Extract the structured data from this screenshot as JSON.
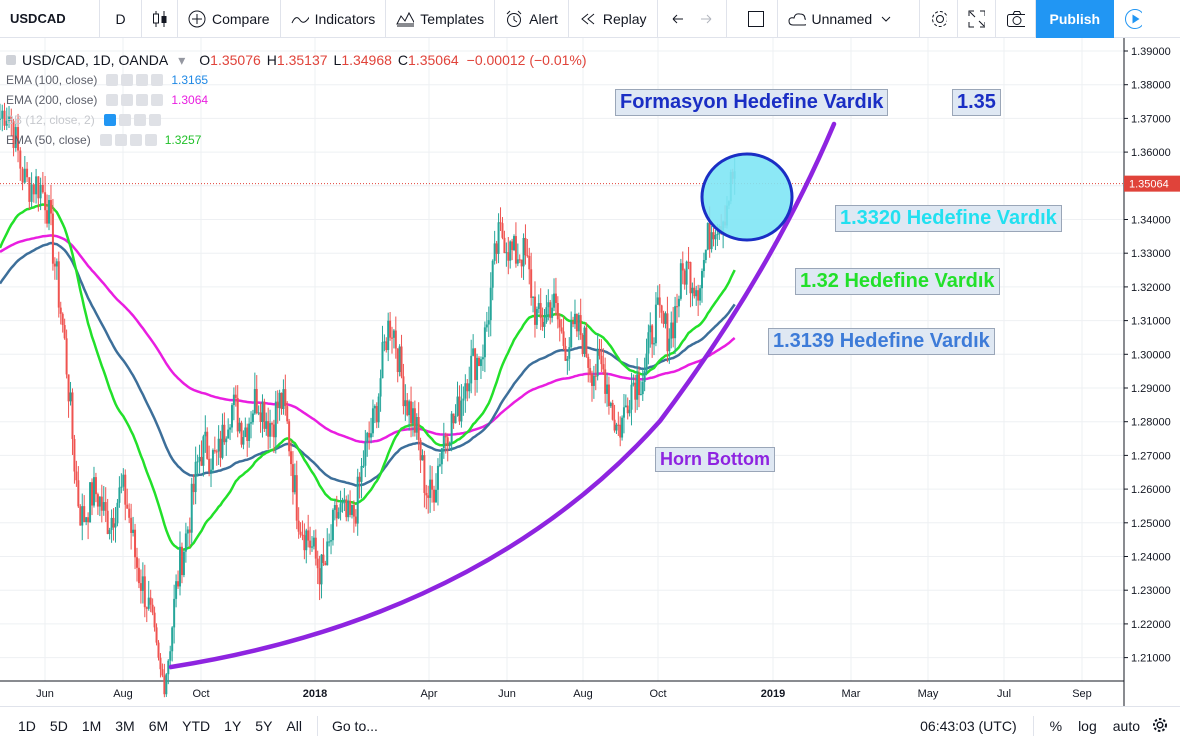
{
  "toolbar": {
    "symbol": "USDCAD",
    "interval": "D",
    "compare": "Compare",
    "indicators": "Indicators",
    "templates": "Templates",
    "alert": "Alert",
    "replay": "Replay",
    "layout_name": "Unnamed",
    "publish": "Publish"
  },
  "legend": {
    "symbol": "USD/CAD, 1D, OANDA",
    "open_label": "O",
    "open": "1.35076",
    "high_label": "H",
    "high": "1.35137",
    "low_label": "L",
    "low": "1.34968",
    "close_label": "C",
    "close": "1.35064",
    "change": "−0.00012 (−0.01%)",
    "indicators": [
      {
        "name": "EMA (100, close)",
        "value": "1.3165",
        "color": "#1e88e5"
      },
      {
        "name": "EMA (200, close)",
        "value": "1.3064",
        "color": "#e91ee0"
      },
      {
        "name": "BB (12, close, 2)",
        "value": "",
        "color": "#2196f3"
      },
      {
        "name": "EMA (50, close)",
        "value": "1.3257",
        "color": "#22c02a"
      }
    ]
  },
  "annotations": {
    "target_title": "Formasyon Hedefine Vardık",
    "target_value": "1.35",
    "t3320": "1.3320 Hedefine Vardık",
    "t32": "1.32 Hedefine Vardık",
    "t3139": "1.3139 Hedefine Vardık",
    "horn": "Horn Bottom"
  },
  "bottom": {
    "ranges": [
      "1D",
      "5D",
      "1M",
      "3M",
      "6M",
      "YTD",
      "1Y",
      "5Y",
      "All"
    ],
    "goto": "Go to...",
    "time": "06:43:03 (UTC)",
    "percent": "%",
    "log": "log",
    "auto": "auto"
  },
  "colors": {
    "up": "#26a69a",
    "down": "#ef5350",
    "ema50": "#22e02a",
    "ema100": "#3d6f9a",
    "ema200": "#e91ee0",
    "curve": "#8e24e0",
    "circle_fill": "#7fe6f5",
    "circle_stroke": "#1a2ec4"
  },
  "chart_data": {
    "type": "candlestick",
    "symbol": "USD/CAD",
    "interval": "1D",
    "y_axis": {
      "ticks": [
        "1.39000",
        "1.38000",
        "1.37000",
        "1.36000",
        "1.35000",
        "1.34000",
        "1.33000",
        "1.32000",
        "1.31000",
        "1.30000",
        "1.29000",
        "1.28000",
        "1.27000",
        "1.26000",
        "1.25000",
        "1.24000",
        "1.23000",
        "1.22000",
        "1.21000"
      ],
      "range": [
        1.2013,
        1.3938
      ],
      "last_price": "1.35064"
    },
    "x_axis": {
      "ticks": [
        "Jun",
        "Aug",
        "Oct",
        "2018",
        "Apr",
        "Jun",
        "Aug",
        "Oct",
        "2019",
        "Mar",
        "May",
        "Jul",
        "Sep"
      ]
    },
    "price_path": [
      {
        "date": "2017-05",
        "price": 1.37
      },
      {
        "date": "2017-06",
        "price": 1.345
      },
      {
        "date": "2017-07",
        "price": 1.255
      },
      {
        "date": "2017-08",
        "price": 1.255
      },
      {
        "date": "2017-09",
        "price": 1.208
      },
      {
        "date": "2017-10",
        "price": 1.268
      },
      {
        "date": "2017-11",
        "price": 1.282
      },
      {
        "date": "2017-12",
        "price": 1.284
      },
      {
        "date": "2018-01",
        "price": 1.238
      },
      {
        "date": "2018-02",
        "price": 1.255
      },
      {
        "date": "2018-03",
        "price": 1.305
      },
      {
        "date": "2018-04",
        "price": 1.262
      },
      {
        "date": "2018-05",
        "price": 1.292
      },
      {
        "date": "2018-06",
        "price": 1.335
      },
      {
        "date": "2018-07",
        "price": 1.312
      },
      {
        "date": "2018-08",
        "price": 1.303
      },
      {
        "date": "2018-09",
        "price": 1.282
      },
      {
        "date": "2018-10",
        "price": 1.307
      },
      {
        "date": "2018-11",
        "price": 1.325
      },
      {
        "date": "2018-12",
        "price": 1.351
      }
    ]
  }
}
